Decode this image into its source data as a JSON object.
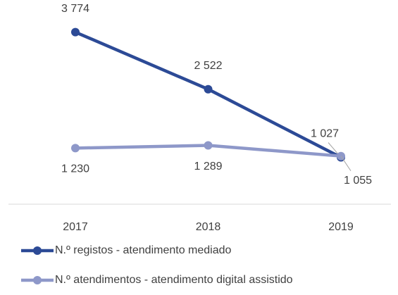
{
  "chart_data": {
    "type": "line",
    "categories": [
      "2017",
      "2018",
      "2019"
    ],
    "series": [
      {
        "name": "N.º registos - atendimento mediado",
        "color": "#2c4a96",
        "values": [
          3774,
          2522,
          1027
        ],
        "value_labels": [
          "3 774",
          "2 522",
          "1 027"
        ]
      },
      {
        "name": "N.º atendimentos - atendimento digital assistido",
        "color": "#8e98c9",
        "values": [
          1230,
          1289,
          1055
        ],
        "value_labels": [
          "1 230",
          "1 289",
          "1 055"
        ]
      }
    ],
    "ylim": [
      0,
      4000
    ],
    "legend": "bottom"
  }
}
